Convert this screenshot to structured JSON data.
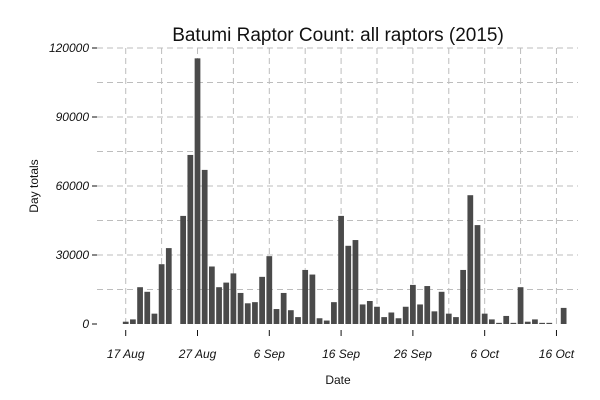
{
  "chart_data": {
    "type": "bar",
    "title": "Batumi Raptor Count: all raptors (2015)",
    "xlabel": "Date",
    "ylabel": "Day totals",
    "ylim": [
      0,
      120000
    ],
    "yticks": [
      0,
      30000,
      60000,
      90000,
      120000
    ],
    "ytick_labels": [
      "0",
      "30000",
      "60000",
      "90000",
      "120000"
    ],
    "xlim": [
      "2015-08-13",
      "2015-10-19"
    ],
    "xticks": [
      "2015-08-17",
      "2015-08-27",
      "2015-09-06",
      "2015-09-16",
      "2015-09-26",
      "2015-10-06",
      "2015-10-16"
    ],
    "xtick_labels": [
      "17 Aug",
      "27 Aug",
      "6 Sep",
      "16 Sep",
      "26 Sep",
      "6 Oct",
      "16 Oct"
    ],
    "grid": true,
    "color": "#4a4a4a",
    "series": [
      {
        "x": [
          "2015-08-17",
          "2015-08-18",
          "2015-08-19",
          "2015-08-20",
          "2015-08-21",
          "2015-08-22",
          "2015-08-23",
          "2015-08-25",
          "2015-08-26",
          "2015-08-27",
          "2015-08-28",
          "2015-08-29",
          "2015-08-30",
          "2015-08-31",
          "2015-09-01",
          "2015-09-02",
          "2015-09-03",
          "2015-09-04",
          "2015-09-05",
          "2015-09-06",
          "2015-09-07",
          "2015-09-08",
          "2015-09-09",
          "2015-09-10",
          "2015-09-11",
          "2015-09-12",
          "2015-09-13",
          "2015-09-14",
          "2015-09-15",
          "2015-09-16",
          "2015-09-17",
          "2015-09-18",
          "2015-09-19",
          "2015-09-20",
          "2015-09-21",
          "2015-09-22",
          "2015-09-23",
          "2015-09-24",
          "2015-09-25",
          "2015-09-26",
          "2015-09-27",
          "2015-09-28",
          "2015-09-29",
          "2015-09-30",
          "2015-10-01",
          "2015-10-02",
          "2015-10-03",
          "2015-10-04",
          "2015-10-05",
          "2015-10-06",
          "2015-10-07",
          "2015-10-08",
          "2015-10-09",
          "2015-10-10",
          "2015-10-11",
          "2015-10-12",
          "2015-10-13",
          "2015-10-14",
          "2015-10-15",
          "2015-10-17"
        ],
        "values": [
          1000,
          2000,
          16000,
          14000,
          4500,
          26000,
          33000,
          47000,
          73500,
          115500,
          67000,
          25000,
          16000,
          18000,
          22000,
          13500,
          9000,
          9500,
          20500,
          29500,
          6500,
          13500,
          6000,
          3000,
          23500,
          21500,
          2500,
          1500,
          9500,
          47000,
          34000,
          36500,
          8500,
          10000,
          7500,
          3000,
          5000,
          2500,
          7500,
          17000,
          8500,
          16500,
          5500,
          14000,
          4500,
          3000,
          23500,
          56000,
          43000,
          4500,
          2000,
          500,
          3500,
          500,
          16000,
          1000,
          2000,
          500,
          500,
          7000
        ]
      }
    ]
  }
}
